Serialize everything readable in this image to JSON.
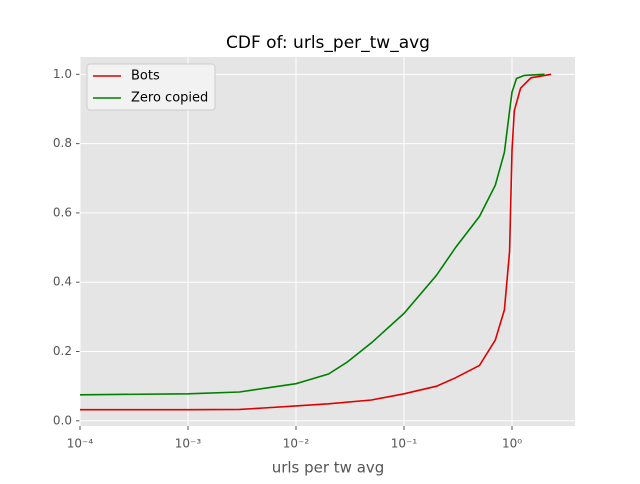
{
  "chart_data": {
    "type": "line",
    "title": "CDF of: urls_per_tw_avg",
    "xlabel": "urls per tw avg",
    "xscale": "log",
    "grid": true,
    "legend": "upper left",
    "xlim": [
      0.0001,
      3.83
    ],
    "ylim": [
      -0.015,
      1.05
    ],
    "xticks": [
      {
        "value": 0.0001,
        "label": "10⁻⁴"
      },
      {
        "value": 0.001,
        "label": "10⁻³"
      },
      {
        "value": 0.01,
        "label": "10⁻²"
      },
      {
        "value": 0.1,
        "label": "10⁻¹"
      },
      {
        "value": 1,
        "label": "10⁰"
      }
    ],
    "yticks": [
      {
        "value": 0,
        "label": "0.0"
      },
      0.2,
      0.4,
      0.6,
      0.8,
      {
        "value": 1,
        "label": "1.0"
      }
    ],
    "series": [
      {
        "name": "Bots",
        "color": "#e00000",
        "x": [
          0.0001,
          0.001,
          0.003,
          0.005,
          0.01,
          0.02,
          0.05,
          0.1,
          0.2,
          0.3,
          0.5,
          0.7,
          0.85,
          0.95,
          1.0,
          1.05,
          1.2,
          1.5,
          2.3
        ],
        "values": [
          0.032,
          0.032,
          0.033,
          0.037,
          0.043,
          0.049,
          0.06,
          0.078,
          0.1,
          0.124,
          0.16,
          0.233,
          0.32,
          0.49,
          0.78,
          0.895,
          0.96,
          0.99,
          1.0
        ]
      },
      {
        "name": "Zero copied",
        "color": "#008000",
        "x": [
          0.0001,
          0.001,
          0.003,
          0.01,
          0.02,
          0.03,
          0.05,
          0.1,
          0.2,
          0.3,
          0.5,
          0.7,
          0.85,
          0.95,
          1.0,
          1.1,
          1.3,
          2.0
        ],
        "values": [
          0.075,
          0.078,
          0.083,
          0.107,
          0.135,
          0.17,
          0.225,
          0.31,
          0.42,
          0.5,
          0.59,
          0.68,
          0.775,
          0.895,
          0.948,
          0.988,
          0.997,
          1.0
        ]
      }
    ]
  }
}
